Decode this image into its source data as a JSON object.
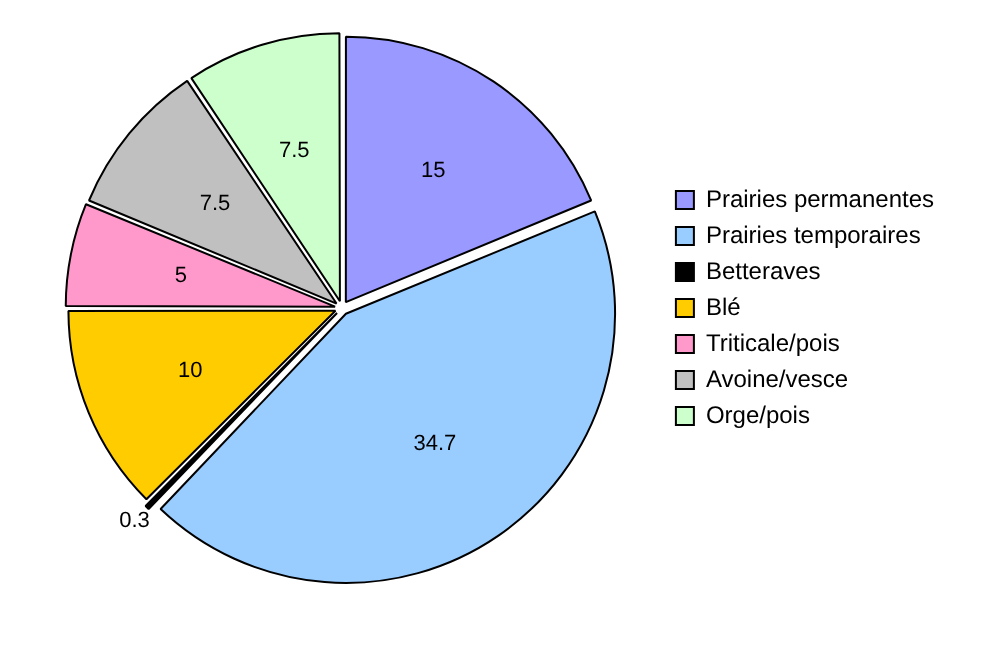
{
  "chart_data": {
    "type": "pie",
    "categories": [
      "Prairies permanentes",
      "Prairies temporaires",
      "Betteraves",
      "Blé",
      "Triticale/pois",
      "Avoine/vesce",
      "Orge/pois"
    ],
    "values": [
      15,
      34.7,
      0.3,
      10,
      5,
      7.5,
      7.5
    ],
    "colors": [
      "#9999ff",
      "#99ccff",
      "#000000",
      "#ffcc00",
      "#ff99cc",
      "#c0c0c0",
      "#ccffcc"
    ],
    "data_labels": true,
    "legend": "right"
  }
}
